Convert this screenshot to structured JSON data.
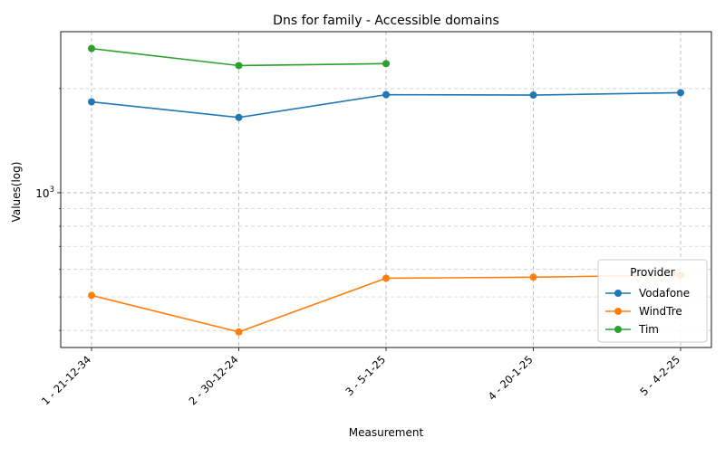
{
  "chart_data": {
    "type": "line",
    "title": "Dns for family - Accessible domains",
    "xlabel": "Measurement",
    "ylabel": "Values(log)",
    "yscale": "log",
    "ylim": [
      357,
      2920
    ],
    "grid": true,
    "categories": [
      "1 - 21-12-34",
      "2 - 30-12-24",
      "3 - 5-1-25",
      "4 - 20-1-25",
      "5 - 4-2-25"
    ],
    "y_tick_labels": [
      {
        "value": 1000,
        "label": "10^3"
      }
    ],
    "y_minor_ticks": [
      400,
      500,
      600,
      700,
      800,
      900,
      2000
    ],
    "legend": {
      "title": "Provider",
      "position": "lower-right"
    },
    "series": [
      {
        "name": "Vodafone",
        "color": "#1f77b4",
        "values": [
          1830,
          1650,
          1920,
          1915,
          1945
        ]
      },
      {
        "name": "WindTre",
        "color": "#ff7f0e",
        "values": [
          505,
          396,
          566,
          570,
          578
        ]
      },
      {
        "name": "Tim",
        "color": "#2ca02c",
        "values": [
          2610,
          2330,
          2360,
          null,
          null
        ]
      }
    ]
  }
}
